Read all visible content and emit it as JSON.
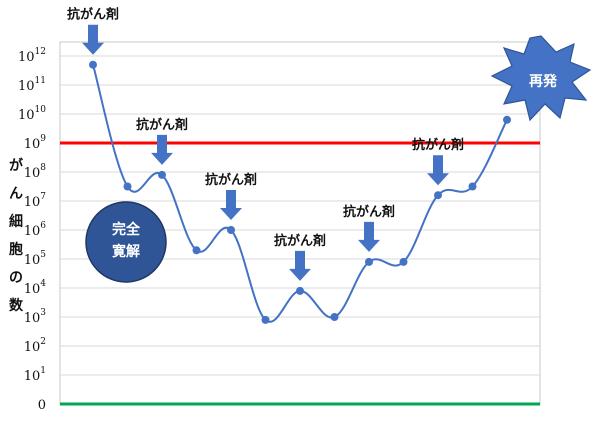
{
  "chart_data": {
    "type": "line",
    "title": "",
    "ylabel": "がん細胞の数",
    "xlabel": "",
    "y_scale": "log",
    "y_ticks": [
      {
        "base": "0",
        "exp": ""
      },
      {
        "base": "10",
        "exp": "1"
      },
      {
        "base": "10",
        "exp": "2"
      },
      {
        "base": "10",
        "exp": "3"
      },
      {
        "base": "10",
        "exp": "4"
      },
      {
        "base": "10",
        "exp": "5"
      },
      {
        "base": "10",
        "exp": "6"
      },
      {
        "base": "10",
        "exp": "7"
      },
      {
        "base": "10",
        "exp": "8"
      },
      {
        "base": "10",
        "exp": "9"
      },
      {
        "base": "10",
        "exp": "10"
      },
      {
        "base": "10",
        "exp": "11"
      },
      {
        "base": "10",
        "exp": "12"
      }
    ],
    "ylim_log10": [
      0,
      12
    ],
    "grid": true,
    "series": [
      {
        "color": "#4472c4",
        "y_log10": [
          11.7,
          7.5,
          7.9,
          5.3,
          6.0,
          2.9,
          3.9,
          3.0,
          4.9,
          4.9,
          7.2,
          7.5,
          9.8
        ]
      }
    ],
    "reference_lines": [
      {
        "y_log10": 9.0,
        "color": "#ff0000"
      },
      {
        "y_log10": 0.0,
        "color": "#00a651"
      }
    ],
    "annotations": {
      "drug_label": "抗がん剤",
      "drug_point_indices": [
        0,
        2,
        4,
        6,
        8,
        10
      ],
      "remission_label_line1": "完全",
      "remission_label_line2": "寛解",
      "relapse_label": "再発"
    },
    "colors": {
      "series": "#4472c4",
      "arrow": "#4472c4",
      "threshold": "#ff0000",
      "baseline": "#00a651",
      "remission_fill": "#2f5597",
      "relapse_fill": "#4472c4"
    }
  }
}
